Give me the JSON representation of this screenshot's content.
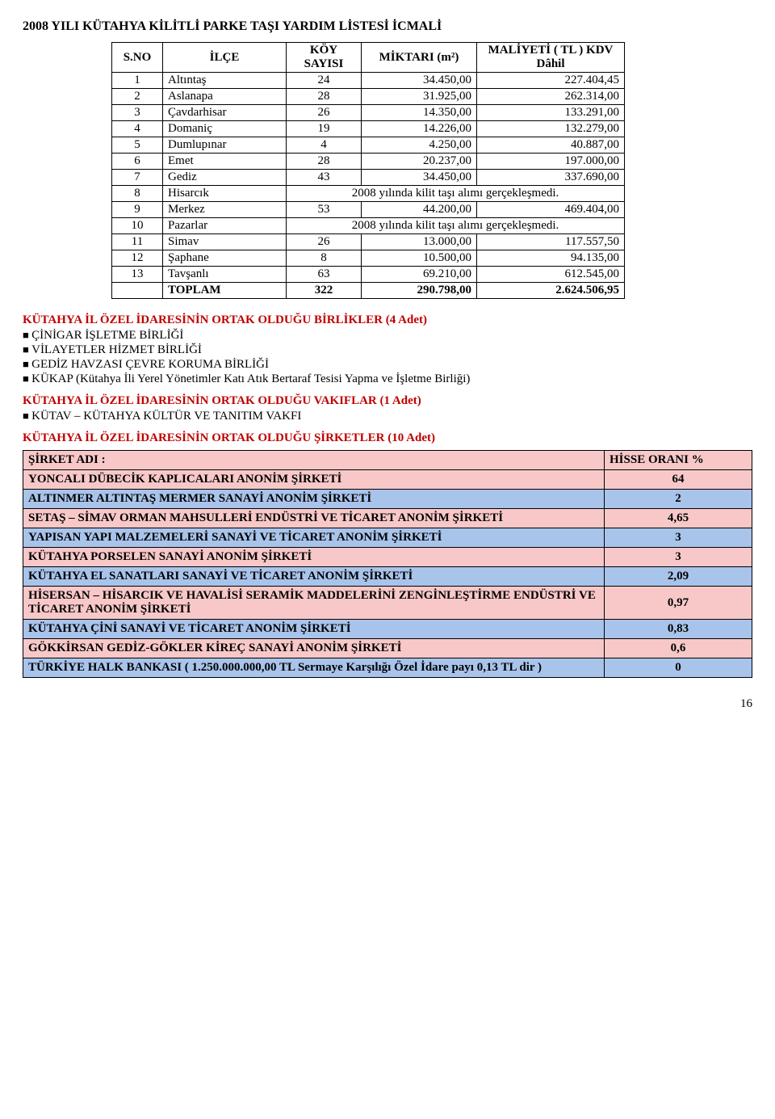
{
  "page_title": "2008 YILI KÜTAHYA KİLİTLİ PARKE TAŞI YARDIM LİSTESİ İCMALİ",
  "parke_headers": {
    "sno": "S.NO",
    "ilce": "İLÇE",
    "koy": "KÖY SAYISI",
    "miktar": "MİKTARI (m²)",
    "maliyet": "MALİYETİ ( TL ) KDV Dâhil"
  },
  "parke_rows": [
    {
      "sno": "1",
      "ilce": "Altıntaş",
      "koy": "24",
      "miktar": "34.450,00",
      "maliyet": "227.404,45"
    },
    {
      "sno": "2",
      "ilce": "Aslanapa",
      "koy": "28",
      "miktar": "31.925,00",
      "maliyet": "262.314,00"
    },
    {
      "sno": "3",
      "ilce": "Çavdarhisar",
      "koy": "26",
      "miktar": "14.350,00",
      "maliyet": "133.291,00"
    },
    {
      "sno": "4",
      "ilce": "Domaniç",
      "koy": "19",
      "miktar": "14.226,00",
      "maliyet": "132.279,00"
    },
    {
      "sno": "5",
      "ilce": "Dumlupınar",
      "koy": "4",
      "miktar": "4.250,00",
      "maliyet": "40.887,00"
    },
    {
      "sno": "6",
      "ilce": "Emet",
      "koy": "28",
      "miktar": "20.237,00",
      "maliyet": "197.000,00"
    },
    {
      "sno": "7",
      "ilce": "Gediz",
      "koy": "43",
      "miktar": "34.450,00",
      "maliyet": "337.690,00"
    },
    {
      "sno": "8",
      "ilce": "Hisarcık",
      "note": "2008 yılında kilit taşı alımı gerçekleşmedi."
    },
    {
      "sno": "9",
      "ilce": "Merkez",
      "koy": "53",
      "miktar": "44.200,00",
      "maliyet": "469.404,00"
    },
    {
      "sno": "10",
      "ilce": "Pazarlar",
      "note": "2008 yılında kilit taşı alımı gerçekleşmedi."
    },
    {
      "sno": "11",
      "ilce": "Simav",
      "koy": "26",
      "miktar": "13.000,00",
      "maliyet": "117.557,50"
    },
    {
      "sno": "12",
      "ilce": "Şaphane",
      "koy": "8",
      "miktar": "10.500,00",
      "maliyet": "94.135,00"
    },
    {
      "sno": "13",
      "ilce": "Tavşanlı",
      "koy": "63",
      "miktar": "69.210,00",
      "maliyet": "612.545,00"
    }
  ],
  "parke_total": {
    "label": "TOPLAM",
    "koy": "322",
    "miktar": "290.798,00",
    "maliyet": "2.624.506,95"
  },
  "birlikler_heading": "KÜTAHYA İL ÖZEL İDARESİNİN ORTAK OLDUĞU BİRLİKLER (4 Adet)",
  "birlikler": [
    "ÇİNİGAR İŞLETME BİRLİĞİ",
    "VİLAYETLER HİZMET BİRLİĞİ",
    "GEDİZ HAVZASI ÇEVRE KORUMA BİRLİĞİ",
    " KÜKAP (Kütahya İli Yerel Yönetimler Katı Atık Bertaraf Tesisi Yapma ve İşletme Birliği)"
  ],
  "vakiflar_heading": "KÜTAHYA İL ÖZEL İDARESİNİN ORTAK OLDUĞU VAKIFLAR (1 Adet)",
  "vakiflar": [
    "KÜTAV – KÜTAHYA KÜLTÜR VE TANITIM VAKFI"
  ],
  "sirketler_heading": "KÜTAHYA İL ÖZEL İDARESİNİN ORTAK OLDUĞU ŞİRKETLER  (10 Adet)",
  "companies_headers": {
    "name": "ŞİRKET ADI :",
    "share": "HİSSE ORANI %"
  },
  "companies": [
    {
      "name": "YONCALI DÜBECİK KAPLICALARI ANONİM ŞİRKETİ",
      "share": "64",
      "color": "pink"
    },
    {
      "name": "ALTINMER ALTINTAŞ MERMER SANAYİ ANONİM ŞİRKETİ",
      "share": "2",
      "color": "blue"
    },
    {
      "name": " SETAŞ – SİMAV ORMAN MAHSULLERİ ENDÜSTRİ VE TİCARET ANONİM ŞİRKETİ",
      "share": "4,65",
      "color": "pink"
    },
    {
      "name": " YAPISAN YAPI MALZEMELERİ SANAYİ VE TİCARET ANONİM ŞİRKETİ",
      "share": "3",
      "color": "blue"
    },
    {
      "name": " KÜTAHYA PORSELEN SANAYİ ANONİM ŞİRKETİ",
      "share": "3",
      "color": "pink"
    },
    {
      "name": "KÜTAHYA EL SANATLARI SANAYİ VE TİCARET ANONİM ŞİRKETİ",
      "share": "2,09",
      "color": "blue"
    },
    {
      "name": " HİSERSAN – HİSARCIK VE HAVALİSİ SERAMİK MADDELERİNİ ZENGİNLEŞTİRME ENDÜSTRİ VE TİCARET ANONİM ŞİRKETİ",
      "share": "0,97",
      "color": "pink"
    },
    {
      "name": " KÜTAHYA ÇİNİ SANAYİ VE TİCARET ANONİM ŞİRKETİ",
      "share": "0,83",
      "color": "blue"
    },
    {
      "name": "GÖKKİRSAN GEDİZ-GÖKLER KİREÇ SANAYİ ANONİM ŞİRKETİ",
      "share": "0,6",
      "color": "pink"
    },
    {
      "name": " TÜRKİYE HALK BANKASI ( 1.250.000.000,00 TL Sermaye Karşılığı Özel İdare payı 0,13 TL dir )",
      "share": "0",
      "color": "blue"
    }
  ],
  "page_number": "16",
  "colors": {
    "heading_red": "#c00000",
    "row_pink": "#f8c8c8",
    "row_blue": "#a9c4eb",
    "border": "#000000",
    "background": "#ffffff"
  }
}
